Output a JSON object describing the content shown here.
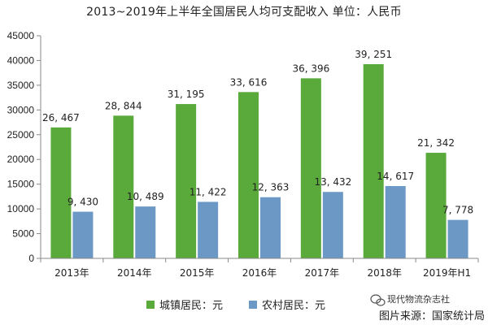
{
  "title": "2013~2019年上半年全国居民人均可支配收入  单位：人民币",
  "source": "图片来源：国家统计局",
  "watermark": {
    "text": "现代物流杂志社",
    "icon": "wechat-icon"
  },
  "colors": {
    "urban": "#5aa93b",
    "rural": "#6c98c6",
    "axis": "#888888",
    "text": "#222222"
  },
  "chart_data": {
    "type": "bar",
    "title": "2013~2019年上半年全国居民人均可支配收入  单位：人民币",
    "categories": [
      "2013年",
      "2014年",
      "2015年",
      "2016年",
      "2017年",
      "2018年",
      "2019年H1"
    ],
    "series": [
      {
        "name": "城镇居民：元",
        "values": [
          26467,
          28844,
          31195,
          33616,
          36396,
          39251,
          21342
        ],
        "labels": [
          "26, 467",
          "28, 844",
          "31, 195",
          "33, 616",
          "36, 396",
          "39, 251",
          "21, 342"
        ],
        "color": "#5aa93b"
      },
      {
        "name": "农村居民：元",
        "values": [
          9430,
          10489,
          11422,
          12363,
          13432,
          14617,
          7778
        ],
        "labels": [
          "9, 430",
          "10, 489",
          "11, 422",
          "12, 363",
          "13, 432",
          "14, 617",
          "7, 778"
        ],
        "color": "#6c98c6"
      }
    ],
    "ylim": [
      0,
      45000
    ],
    "yticks": [
      0,
      5000,
      10000,
      15000,
      20000,
      25000,
      30000,
      35000,
      40000,
      45000
    ],
    "xlabel": "",
    "ylabel": "",
    "grid": false,
    "legend_position": "bottom"
  }
}
